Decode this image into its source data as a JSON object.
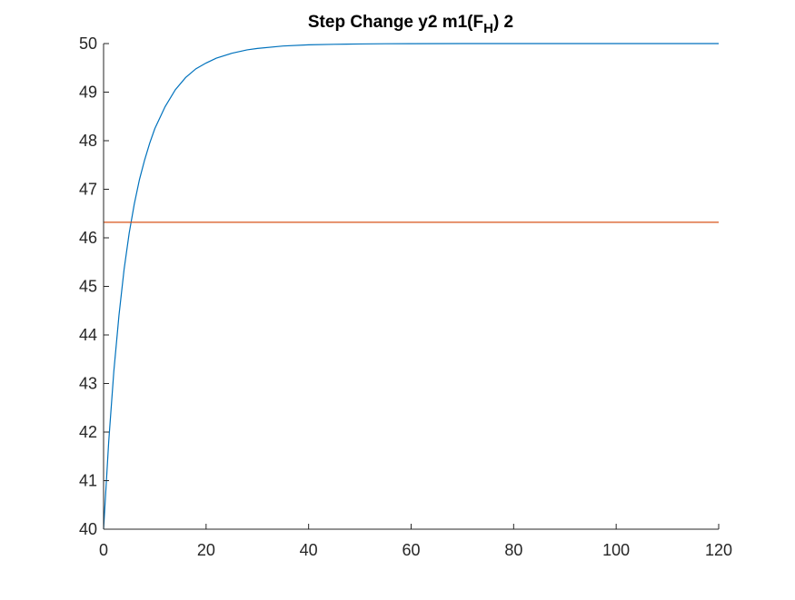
{
  "chart_data": {
    "type": "line",
    "title": "Step Change y2 m1(F",
    "title_subscript": "H",
    "title_suffix": ") 2",
    "xlabel": "",
    "ylabel": "",
    "xlim": [
      0,
      120
    ],
    "ylim": [
      40,
      50
    ],
    "x_ticks": [
      0,
      20,
      40,
      60,
      80,
      100,
      120
    ],
    "y_ticks": [
      40,
      41,
      42,
      43,
      44,
      45,
      46,
      47,
      48,
      49,
      50
    ],
    "grid": false,
    "legend": "none",
    "series": [
      {
        "color": "#0072BD",
        "x": [
          0,
          1,
          2,
          3,
          4,
          5,
          6,
          7,
          8,
          9,
          10,
          12,
          14,
          16,
          18,
          20,
          22,
          25,
          28,
          30,
          35,
          40,
          45,
          50,
          55,
          60,
          70,
          80,
          90,
          100,
          110,
          120
        ],
        "y": [
          40.0,
          41.8,
          43.25,
          44.4,
          45.35,
          46.1,
          46.7,
          47.2,
          47.6,
          47.95,
          48.25,
          48.7,
          49.05,
          49.3,
          49.48,
          49.6,
          49.7,
          49.8,
          49.87,
          49.9,
          49.95,
          49.975,
          49.985,
          49.992,
          49.996,
          49.998,
          50.0,
          50.0,
          50.0,
          50.0,
          50.0,
          50.0
        ]
      },
      {
        "color": "#D95319",
        "x": [
          0,
          120
        ],
        "y": [
          46.32,
          46.32
        ]
      }
    ]
  }
}
